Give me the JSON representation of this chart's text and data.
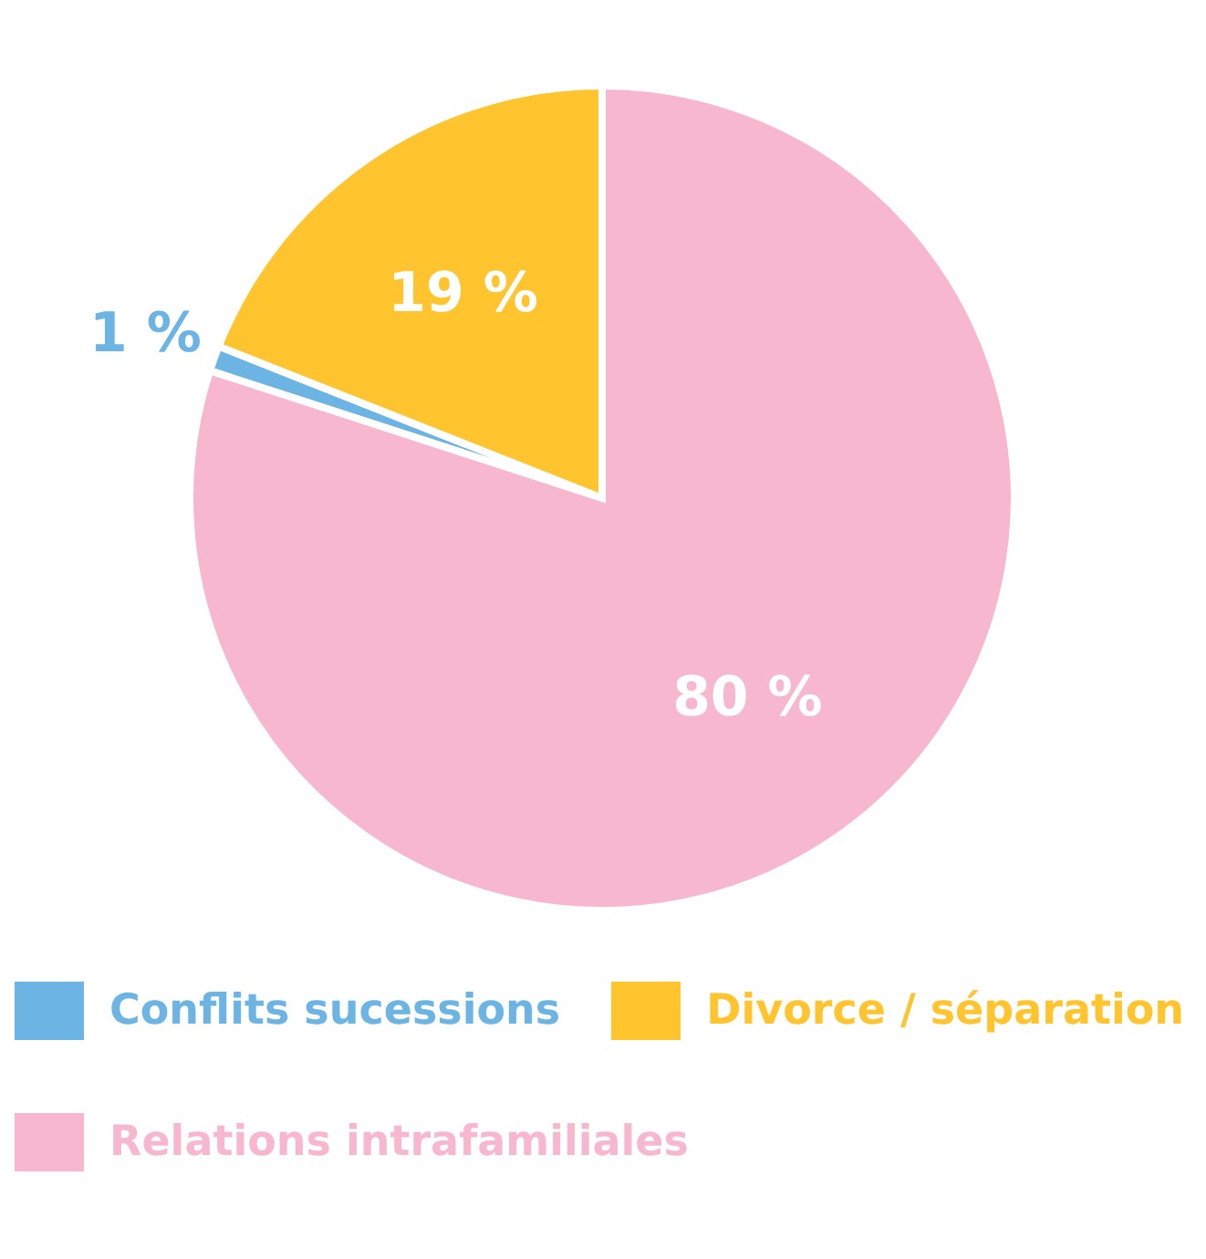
{
  "chart_data": {
    "type": "pie",
    "categories": [
      "Conflits sucessions",
      "Divorce / séparation",
      "Relations intrafamiliales"
    ],
    "values": [
      1,
      19,
      80
    ],
    "colors": [
      "#6cb4e4",
      "#ffc42e",
      "#f7b8cf"
    ],
    "value_labels": [
      "1 %",
      "19 %",
      "80 %"
    ],
    "legend": "bottom"
  }
}
